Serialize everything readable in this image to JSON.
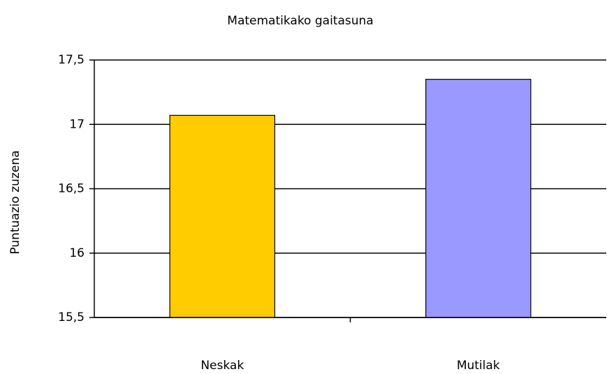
{
  "chart_data": {
    "type": "bar",
    "title": "Matematikako gaitasuna",
    "y_label": "Puntuazio zuzena",
    "categories": [
      "Neskak",
      "Mutilak"
    ],
    "values": [
      17.07,
      17.35
    ],
    "colors": [
      "#ffcc00",
      "#9999ff"
    ],
    "ylim": [
      15.5,
      17.5
    ],
    "yticks": [
      {
        "value": 15.5,
        "label": "15,5"
      },
      16,
      {
        "value": 16.5,
        "label": "16,5"
      },
      17,
      {
        "value": 17.5,
        "label": "17,5"
      }
    ],
    "grid": true
  }
}
